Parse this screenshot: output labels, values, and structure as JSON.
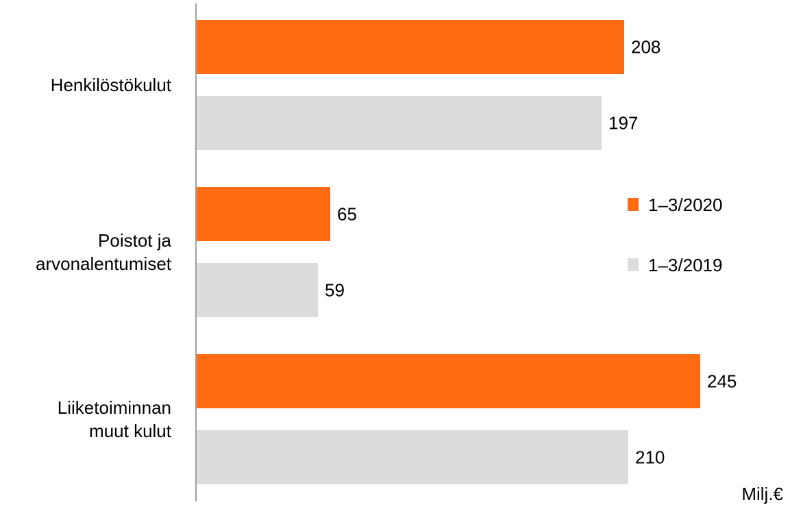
{
  "chart_data": {
    "type": "bar",
    "orientation": "horizontal",
    "categories": [
      [
        "Henkilöstökulut"
      ],
      [
        "Poistot ja",
        "arvonalentumiset"
      ],
      [
        "Liiketoiminnan",
        "muut kulut"
      ]
    ],
    "series": [
      {
        "name": "1–3/2020",
        "color": "#FF6B13",
        "values": [
          208,
          65,
          245
        ]
      },
      {
        "name": "1–3/2019",
        "color": "#DCDCDC",
        "values": [
          197,
          59,
          210
        ]
      }
    ],
    "xlim": [
      0,
      270
    ],
    "grid": false,
    "legend_position": "right",
    "unit": "Milj.€"
  }
}
